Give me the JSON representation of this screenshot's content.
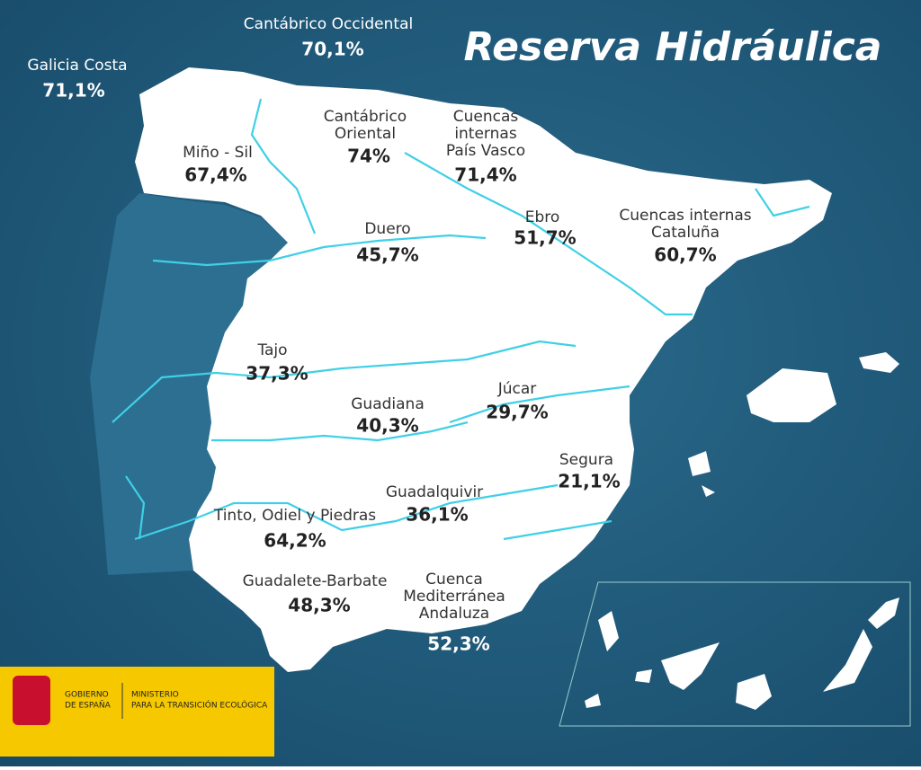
{
  "title": "Reserva Hidráulica",
  "basins": [
    {
      "name": [
        "Cantábrico Occidental"
      ],
      "value": "70,1%"
    },
    {
      "name": [
        "Galicia Costa"
      ],
      "value": "71,1%"
    },
    {
      "name": [
        "Miño - Sil"
      ],
      "value": "67,4%"
    },
    {
      "name": [
        "Cantábrico",
        "Oriental"
      ],
      "value": "74%"
    },
    {
      "name": [
        "Cuencas",
        "internas",
        "País Vasco"
      ],
      "value": "71,4%"
    },
    {
      "name": [
        "Duero"
      ],
      "value": "45,7%"
    },
    {
      "name": [
        "Ebro"
      ],
      "value": "51,7%"
    },
    {
      "name": [
        "Cuencas internas",
        "Cataluña"
      ],
      "value": "60,7%"
    },
    {
      "name": [
        "Tajo"
      ],
      "value": "37,3%"
    },
    {
      "name": [
        "Guadiana"
      ],
      "value": "40,3%"
    },
    {
      "name": [
        "Júcar"
      ],
      "value": "29,7%"
    },
    {
      "name": [
        "Segura"
      ],
      "value": "21,1%"
    },
    {
      "name": [
        "Guadalquivir"
      ],
      "value": "36,1%"
    },
    {
      "name": [
        "Tinto, Odiel y Piedras"
      ],
      "value": "64,2%"
    },
    {
      "name": [
        "Guadalete-Barbate"
      ],
      "value": "48,3%"
    },
    {
      "name": [
        "Cuenca",
        "Mediterránea",
        "Andaluza"
      ],
      "value": "52,3%"
    }
  ],
  "logo": {
    "government": [
      "GOBIERNO",
      "DE ESPAÑA"
    ],
    "ministry": [
      "MINISTERIO",
      "PARA LA TRANSICIÓN ECOLÓGICA"
    ]
  }
}
